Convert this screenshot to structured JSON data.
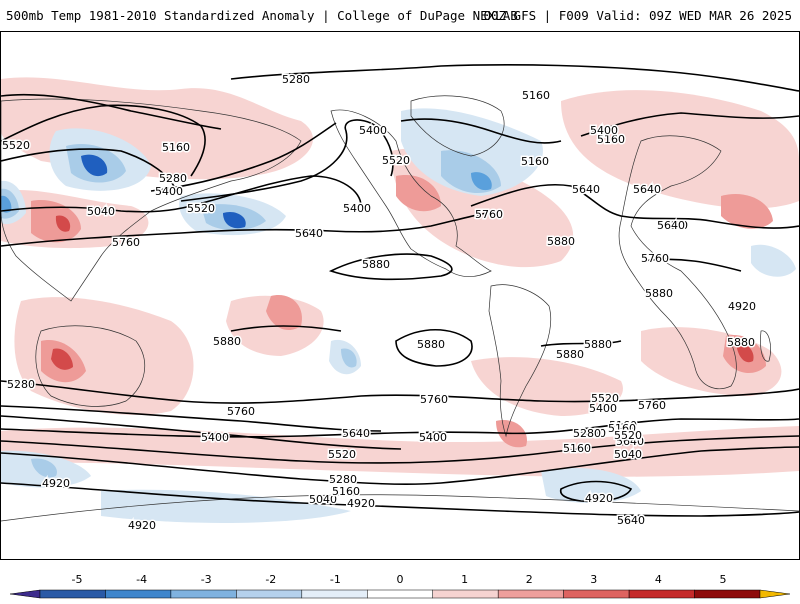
{
  "header": {
    "title_left": "500mb Temp 1981-2010 Standardized Anomaly | College of DuPage NEXLAB",
    "title_right": "00Z GFS | F009 Valid: 09Z WED MAR 26 2025"
  },
  "map": {
    "contour_labels": [
      "5280",
      "5160",
      "5520",
      "5400",
      "5160",
      "5280",
      "5400",
      "5640",
      "5520",
      "5400",
      "5640",
      "5760",
      "5760",
      "5520",
      "5160",
      "5880",
      "5880",
      "5880",
      "5880",
      "5880",
      "5880",
      "5760",
      "5760",
      "5640",
      "5520",
      "5400",
      "5160",
      "5040",
      "4920",
      "4920",
      "5040",
      "4920",
      "5280",
      "5160",
      "5400",
      "5520",
      "5640",
      "5760",
      "5760",
      "5280",
      "5400",
      "5160",
      "5640",
      "4920",
      "5640",
      "5520",
      "5400",
      "5160",
      "5040",
      "5280",
      "5160",
      "5400",
      "5520",
      "5640",
      "5760",
      "5880",
      "5880",
      "5880",
      "4920"
    ],
    "anomaly_colors": {
      "strong_cold": "#1f5fbf",
      "cold": "#5aa0dc",
      "cool": "#a9cce8",
      "slight_cool": "#d6e6f3",
      "slight_warm": "#f7d4d2",
      "warm": "#ee9b98",
      "hot": "#d34a4a",
      "very_hot": "#a31010"
    }
  },
  "colorbar": {
    "ticks": [
      "-5",
      "-4",
      "-3",
      "-2",
      "-1",
      "0",
      "1",
      "2",
      "3",
      "4",
      "5"
    ],
    "colors": [
      "#3d2b8c",
      "#2a5aa6",
      "#3f86cc",
      "#7fb2df",
      "#b5d1ec",
      "#e4eef8",
      "#ffffff",
      "#f6d3d1",
      "#ee9f9c",
      "#de6360",
      "#c52a2a",
      "#8e0b0b",
      "#f2b800"
    ]
  }
}
